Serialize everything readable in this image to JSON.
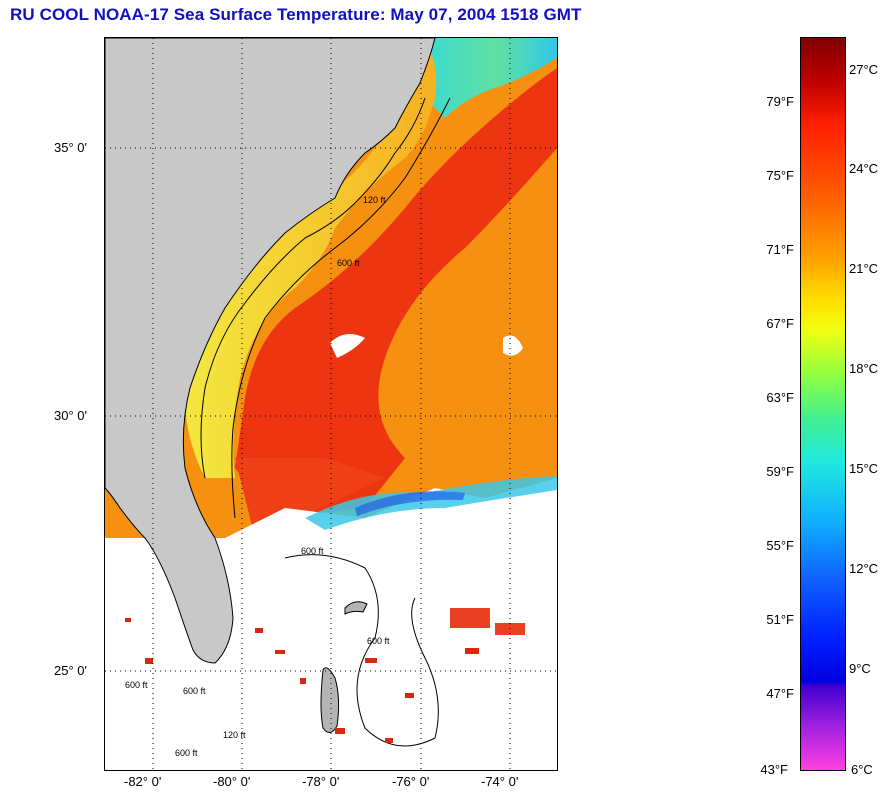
{
  "title": "RU COOL  NOAA-17  Sea Surface Temperature:  May 07, 2004 1518 GMT",
  "map": {
    "latitude_labels": [
      "35° 0'",
      "30° 0'",
      "25° 0'"
    ],
    "longitude_labels": [
      "-82° 0'",
      "-80° 0'",
      "-78° 0'",
      "-76° 0'",
      "-74° 0'"
    ],
    "isobath_labels": [
      "120 ft",
      "600 ft",
      "600 ft",
      "600 ft",
      "600 ft",
      "120 ft",
      "600 ft",
      "600 ft"
    ],
    "colors": {
      "land": "#c8c8c8",
      "cloud": "#ffffff",
      "gulf_stream": "#ee3010",
      "shelf_warm": "#f6a010",
      "shelf_cool": "#f2e030"
    }
  },
  "colorbar": {
    "fahrenheit_ticks": [
      "79°F",
      "75°F",
      "71°F",
      "67°F",
      "63°F",
      "59°F",
      "55°F",
      "51°F",
      "47°F",
      "43°F"
    ],
    "celsius_ticks": [
      "27°C",
      "24°C",
      "21°C",
      "18°C",
      "15°C",
      "12°C",
      "9°C",
      "6°C"
    ]
  }
}
